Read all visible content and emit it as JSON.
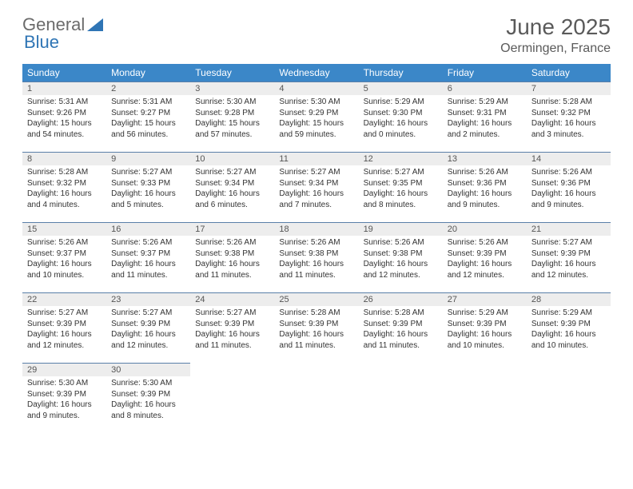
{
  "brand": {
    "part1": "General",
    "part2": "Blue"
  },
  "title": "June 2025",
  "subtitle": "Oermingen, France",
  "colors": {
    "header_bg": "#3b87c8",
    "header_text": "#ffffff",
    "daynum_bg": "#ededed",
    "border": "#5a7fa8",
    "title_color": "#5a5a5a"
  },
  "weekdays": [
    "Sunday",
    "Monday",
    "Tuesday",
    "Wednesday",
    "Thursday",
    "Friday",
    "Saturday"
  ],
  "weeks": [
    [
      {
        "n": "1",
        "sr": "5:31 AM",
        "ss": "9:26 PM",
        "dl": "15 hours and 54 minutes."
      },
      {
        "n": "2",
        "sr": "5:31 AM",
        "ss": "9:27 PM",
        "dl": "15 hours and 56 minutes."
      },
      {
        "n": "3",
        "sr": "5:30 AM",
        "ss": "9:28 PM",
        "dl": "15 hours and 57 minutes."
      },
      {
        "n": "4",
        "sr": "5:30 AM",
        "ss": "9:29 PM",
        "dl": "15 hours and 59 minutes."
      },
      {
        "n": "5",
        "sr": "5:29 AM",
        "ss": "9:30 PM",
        "dl": "16 hours and 0 minutes."
      },
      {
        "n": "6",
        "sr": "5:29 AM",
        "ss": "9:31 PM",
        "dl": "16 hours and 2 minutes."
      },
      {
        "n": "7",
        "sr": "5:28 AM",
        "ss": "9:32 PM",
        "dl": "16 hours and 3 minutes."
      }
    ],
    [
      {
        "n": "8",
        "sr": "5:28 AM",
        "ss": "9:32 PM",
        "dl": "16 hours and 4 minutes."
      },
      {
        "n": "9",
        "sr": "5:27 AM",
        "ss": "9:33 PM",
        "dl": "16 hours and 5 minutes."
      },
      {
        "n": "10",
        "sr": "5:27 AM",
        "ss": "9:34 PM",
        "dl": "16 hours and 6 minutes."
      },
      {
        "n": "11",
        "sr": "5:27 AM",
        "ss": "9:34 PM",
        "dl": "16 hours and 7 minutes."
      },
      {
        "n": "12",
        "sr": "5:27 AM",
        "ss": "9:35 PM",
        "dl": "16 hours and 8 minutes."
      },
      {
        "n": "13",
        "sr": "5:26 AM",
        "ss": "9:36 PM",
        "dl": "16 hours and 9 minutes."
      },
      {
        "n": "14",
        "sr": "5:26 AM",
        "ss": "9:36 PM",
        "dl": "16 hours and 9 minutes."
      }
    ],
    [
      {
        "n": "15",
        "sr": "5:26 AM",
        "ss": "9:37 PM",
        "dl": "16 hours and 10 minutes."
      },
      {
        "n": "16",
        "sr": "5:26 AM",
        "ss": "9:37 PM",
        "dl": "16 hours and 11 minutes."
      },
      {
        "n": "17",
        "sr": "5:26 AM",
        "ss": "9:38 PM",
        "dl": "16 hours and 11 minutes."
      },
      {
        "n": "18",
        "sr": "5:26 AM",
        "ss": "9:38 PM",
        "dl": "16 hours and 11 minutes."
      },
      {
        "n": "19",
        "sr": "5:26 AM",
        "ss": "9:38 PM",
        "dl": "16 hours and 12 minutes."
      },
      {
        "n": "20",
        "sr": "5:26 AM",
        "ss": "9:39 PM",
        "dl": "16 hours and 12 minutes."
      },
      {
        "n": "21",
        "sr": "5:27 AM",
        "ss": "9:39 PM",
        "dl": "16 hours and 12 minutes."
      }
    ],
    [
      {
        "n": "22",
        "sr": "5:27 AM",
        "ss": "9:39 PM",
        "dl": "16 hours and 12 minutes."
      },
      {
        "n": "23",
        "sr": "5:27 AM",
        "ss": "9:39 PM",
        "dl": "16 hours and 12 minutes."
      },
      {
        "n": "24",
        "sr": "5:27 AM",
        "ss": "9:39 PM",
        "dl": "16 hours and 11 minutes."
      },
      {
        "n": "25",
        "sr": "5:28 AM",
        "ss": "9:39 PM",
        "dl": "16 hours and 11 minutes."
      },
      {
        "n": "26",
        "sr": "5:28 AM",
        "ss": "9:39 PM",
        "dl": "16 hours and 11 minutes."
      },
      {
        "n": "27",
        "sr": "5:29 AM",
        "ss": "9:39 PM",
        "dl": "16 hours and 10 minutes."
      },
      {
        "n": "28",
        "sr": "5:29 AM",
        "ss": "9:39 PM",
        "dl": "16 hours and 10 minutes."
      }
    ],
    [
      {
        "n": "29",
        "sr": "5:30 AM",
        "ss": "9:39 PM",
        "dl": "16 hours and 9 minutes."
      },
      {
        "n": "30",
        "sr": "5:30 AM",
        "ss": "9:39 PM",
        "dl": "16 hours and 8 minutes."
      },
      null,
      null,
      null,
      null,
      null
    ]
  ],
  "labels": {
    "sunrise": "Sunrise:",
    "sunset": "Sunset:",
    "daylight": "Daylight:"
  }
}
